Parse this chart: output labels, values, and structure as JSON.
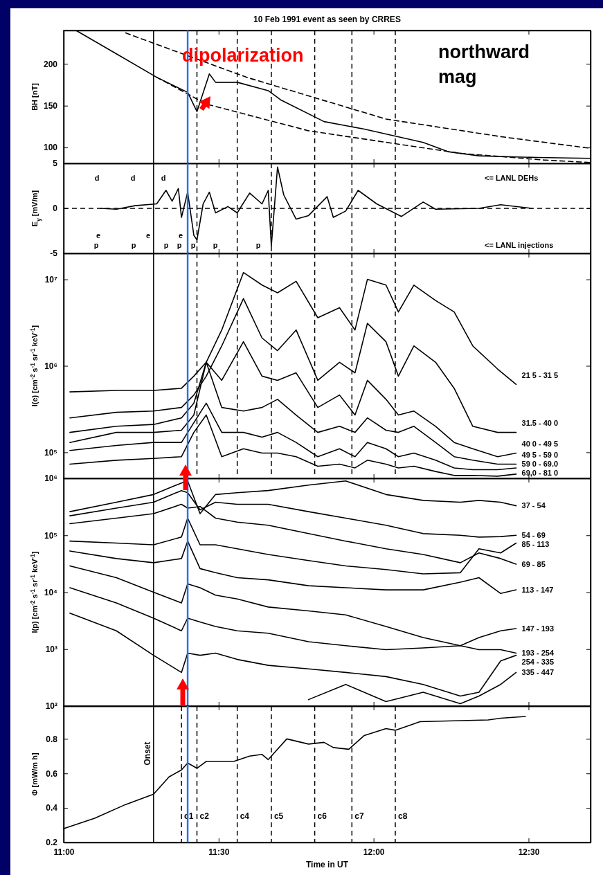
{
  "chart_data": [
    {
      "type": "line",
      "title": "10 Feb 1991 event as seen by CRRES",
      "ylabel": "BH [nT]",
      "xlim": [
        11,
        12.7
      ],
      "xticks": [
        11,
        11.5,
        12,
        12.5
      ],
      "ylim": [
        81,
        240
      ],
      "yticks": [
        100,
        150,
        200
      ],
      "tick_labels": "y",
      "series": [
        {
          "color": "#000000",
          "x": [
            11.04,
            11.17,
            11.3,
            11.4,
            11.43,
            11.47,
            11.49,
            11.56,
            11.66,
            11.7,
            11.84,
            11.97,
            12.16,
            12.24,
            12.34,
            12.53,
            12.7
          ],
          "values": [
            240,
            212,
            184,
            166,
            143,
            188,
            178,
            178,
            168,
            157,
            131,
            122,
            106,
            95,
            90,
            88,
            87
          ]
        },
        {
          "color": "#000000",
          "line_style": "dashed",
          "x": [
            11.2,
            11.59,
            12.04,
            12.41,
            12.7
          ],
          "values": [
            237,
            184,
            134,
            113,
            99
          ]
        },
        {
          "color": "#000000",
          "line_style": "dashed",
          "x": [
            11.3,
            11.46,
            11.79,
            12.28,
            12.55,
            12.7
          ],
          "values": [
            184,
            152,
            120,
            93,
            85,
            82
          ]
        }
      ],
      "ref_lines": [
        {
          "axis": "x",
          "value": 11.29,
          "label": null,
          "line_style": "solid"
        },
        {
          "axis": "x",
          "value": 11.43,
          "label": null,
          "line_style": "dashed"
        },
        {
          "axis": "x",
          "value": 11.56,
          "label": null,
          "line_style": "dashed"
        },
        {
          "axis": "x",
          "value": 11.67,
          "label": null,
          "line_style": "dashed"
        },
        {
          "axis": "x",
          "value": 11.81,
          "label": null,
          "line_style": "dashed"
        },
        {
          "axis": "x",
          "value": 11.93,
          "label": null,
          "line_style": "dashed"
        },
        {
          "axis": "x",
          "value": 12.07,
          "label": null,
          "line_style": "dashed"
        },
        {
          "axis": "x",
          "value": 11.4,
          "label": null,
          "color": "#2f6fe8",
          "line_style": "solid"
        }
      ],
      "annotations": [
        "dipolarization",
        "northward mag"
      ]
    },
    {
      "type": "line",
      "ylabel": "E$_{y}$ [mV/m]",
      "xlim": [
        11,
        12.7
      ],
      "xticks": [
        11,
        11.5,
        12,
        12.5
      ],
      "ylim": [
        -5,
        5
      ],
      "yticks": [
        -5,
        0,
        5
      ],
      "tick_labels": "y",
      "x": [
        11.12,
        11.17,
        11.23,
        11.3,
        11.33,
        11.35,
        11.37,
        11.38,
        11.4,
        11.42,
        11.43,
        11.45,
        11.47,
        11.49,
        11.53,
        11.56,
        11.6,
        11.64,
        11.66,
        11.67,
        11.69,
        11.71,
        11.75,
        11.79,
        11.85,
        11.87,
        11.91,
        11.95,
        12.01,
        12.09,
        12.16,
        12.2,
        12.34,
        12.41,
        12.51
      ],
      "series": [
        {
          "color": "#000000",
          "values": [
            0,
            -0.1,
            0.3,
            0.5,
            2.0,
            0.8,
            2.2,
            -1.0,
            1.8,
            -3.0,
            -3.5,
            0.5,
            1.8,
            -0.5,
            0.2,
            -0.5,
            1.7,
            0.5,
            2.0,
            -4.2,
            4.6,
            1.5,
            -1.2,
            -0.8,
            1.3,
            -1.0,
            -0.3,
            2.0,
            0.5,
            -0.9,
            0.7,
            -0.1,
            0.0,
            0.4,
            0.0
          ]
        }
      ],
      "ref_lines": [
        {
          "axis": "y",
          "value": 0,
          "label": null,
          "line_style": "dashed"
        },
        {
          "axis": "x",
          "value": 11.29,
          "label": null,
          "line_style": "solid"
        },
        {
          "axis": "x",
          "value": 11.43,
          "label": null,
          "line_style": "dashed"
        },
        {
          "axis": "x",
          "value": 11.56,
          "label": null,
          "line_style": "dashed"
        },
        {
          "axis": "x",
          "value": 11.67,
          "label": null,
          "line_style": "dashed"
        },
        {
          "axis": "x",
          "value": 11.81,
          "label": null,
          "line_style": "dashed"
        },
        {
          "axis": "x",
          "value": 11.93,
          "label": null,
          "line_style": "dashed"
        },
        {
          "axis": "x",
          "value": 12.07,
          "label": null,
          "line_style": "dashed"
        },
        {
          "axis": "x",
          "value": 11.4,
          "label": null,
          "color": "#2f6fe8",
          "line_style": "solid"
        }
      ],
      "annotations": [
        "d",
        "d",
        "d",
        "e",
        "e",
        "e",
        "p",
        "p",
        "p",
        "p",
        "p",
        "p",
        "p",
        "<= LANL DEHs",
        "<= LANL injections"
      ]
    },
    {
      "type": "line",
      "ylabel": "I(e) [cm$^{-2}$ s$^{-1}$ sr$^{-1}$ keV$^{-1}$]",
      "xlim": [
        11,
        12.7
      ],
      "xticks": [
        11,
        11.5,
        12,
        12.5
      ],
      "log": true,
      "ylim": [
        50000,
        20000000
      ],
      "yticks": [
        {
          "value": 100000,
          "label": "10⁵"
        },
        {
          "value": 1000000,
          "label": "10⁶"
        },
        {
          "value": 10000000,
          "label": "10⁷"
        }
      ],
      "tick_labels": "y",
      "legend": "right",
      "x": [
        11.02,
        11.17,
        11.29,
        11.38,
        11.42,
        11.46,
        11.51,
        11.58,
        11.64,
        11.69,
        11.75,
        11.82,
        11.89,
        11.94,
        11.98,
        12.04,
        12.08,
        12.13,
        12.2,
        12.26,
        12.32,
        12.4,
        12.46
      ],
      "series": [
        {
          "name": "21 5 - 31 5",
          "color": "#000000",
          "values": [
            500000.0,
            520000.0,
            520000.0,
            550000.0,
            760000.0,
            1100000.0,
            2600000.0,
            12000000.0,
            8600000.0,
            7000000.0,
            9500000.0,
            3600000.0,
            4700000.0,
            2600000.0,
            10000000.0,
            8600000.0,
            4200000.0,
            8600000.0,
            5700000.0,
            4200000.0,
            1700000.0,
            920000.0,
            610000.0
          ]
        },
        {
          "name": "31.5 - 40 0",
          "color": "#000000",
          "values": [
            250000.0,
            290000.0,
            300000.0,
            330000.0,
            460000.0,
            760000.0,
            1700000.0,
            6000000.0,
            2100000.0,
            1500000.0,
            2600000.0,
            680000.0,
            1100000.0,
            830000.0,
            3100000.0,
            1900000.0,
            760000.0,
            1700000.0,
            1100000.0,
            550000.0,
            200000.0,
            170000.0,
            170000.0
          ]
        },
        {
          "name": "40 0 - 49 5",
          "color": "#000000",
          "values": [
            170000.0,
            200000.0,
            210000.0,
            250000.0,
            370000.0,
            1100000.0,
            680000.0,
            1900000.0,
            760000.0,
            680000.0,
            830000.0,
            330000.0,
            460000.0,
            270000.0,
            680000.0,
            410000.0,
            270000.0,
            300000.0,
            200000.0,
            130000.0,
            110000.0,
            89000.0,
            98000.0
          ]
        },
        {
          "name": "49 5 - 59 0",
          "color": "#000000",
          "values": [
            130000.0,
            170000.0,
            170000.0,
            180000.0,
            270000.0,
            1100000.0,
            330000.0,
            300000.0,
            330000.0,
            410000.0,
            270000.0,
            170000.0,
            200000.0,
            170000.0,
            250000.0,
            180000.0,
            170000.0,
            200000.0,
            130000.0,
            89000.0,
            81000.0,
            73000.0,
            73000.0
          ]
        },
        {
          "name": "59 0 - 69.0",
          "color": "#000000",
          "values": [
            105000.0,
            120000.0,
            130000.0,
            130000.0,
            220000.0,
            370000.0,
            170000.0,
            170000.0,
            150000.0,
            170000.0,
            130000.0,
            89000.0,
            110000.0,
            89000.0,
            130000.0,
            110000.0,
            89000.0,
            98000.0,
            81000.0,
            66000.0,
            63000.0,
            63000.0,
            66000.0
          ]
        },
        {
          "name": "69,0 - 81 0",
          "color": "#000000",
          "values": [
            73000.0,
            81000.0,
            85000.0,
            89000.0,
            170000.0,
            270000.0,
            89000.0,
            110000.0,
            98000.0,
            98000.0,
            89000.0,
            69000.0,
            73000.0,
            66000.0,
            81000.0,
            73000.0,
            66000.0,
            69000.0,
            60000.0,
            54000.0,
            54000.0,
            53000.0,
            56000.0
          ]
        }
      ],
      "ref_lines": [
        {
          "axis": "x",
          "value": 11.29,
          "label": null,
          "line_style": "solid"
        },
        {
          "axis": "x",
          "value": 11.43,
          "label": null,
          "line_style": "dashed"
        },
        {
          "axis": "x",
          "value": 11.56,
          "label": null,
          "line_style": "dashed"
        },
        {
          "axis": "x",
          "value": 11.67,
          "label": null,
          "line_style": "dashed"
        },
        {
          "axis": "x",
          "value": 11.81,
          "label": null,
          "line_style": "dashed"
        },
        {
          "axis": "x",
          "value": 11.93,
          "label": null,
          "line_style": "dashed"
        },
        {
          "axis": "x",
          "value": 12.07,
          "label": null,
          "line_style": "dashed"
        },
        {
          "axis": "x",
          "value": 11.4,
          "label": null,
          "color": "#2f6fe8",
          "line_style": "solid"
        }
      ]
    },
    {
      "type": "line",
      "ylabel": "I(p) [cm$^{-2}$ s$^{-1}$ sr$^{-1}$ keV$^{-1}$]",
      "xlim": [
        11,
        12.7
      ],
      "xticks": [
        11,
        11.5,
        12,
        12.5
      ],
      "log": true,
      "ylim": [
        100,
        1000000
      ],
      "yticks": [
        {
          "value": 100,
          "label": "10²"
        },
        {
          "value": 1000,
          "label": "10³"
        },
        {
          "value": 10000,
          "label": "10⁴"
        },
        {
          "value": 100000,
          "label": "10⁵"
        },
        {
          "value": 1000000,
          "label": "10⁶"
        }
      ],
      "tick_labels": "y",
      "legend": "right",
      "x": [
        11.02,
        11.17,
        11.29,
        11.38,
        11.4,
        11.44,
        11.49,
        11.56,
        11.66,
        11.79,
        11.91,
        12.04,
        12.16,
        12.28,
        12.34,
        12.41,
        12.46
      ],
      "series": [
        {
          "name": "37 - 54",
          "color": "#000000",
          "values": [
            260000.0,
            380000.0,
            520000.0,
            830000.0,
            900000.0,
            240000.0,
            520000.0,
            560000.0,
            610000.0,
            760000.0,
            900000.0,
            520000.0,
            410000.0,
            380000.0,
            410000.0,
            380000.0,
            330000.0
          ]
        },
        {
          "name": "54 - 69",
          "color": "#000000",
          "values": [
            220000.0,
            300000.0,
            380000.0,
            610000.0,
            560000.0,
            280000.0,
            380000.0,
            350000.0,
            350000.0,
            260000.0,
            200000.0,
            150000.0,
            107000.0,
            100000.0,
            93000.0,
            95000.0,
            100000.0
          ]
        },
        {
          "name": "69 - 85",
          "color": "#000000",
          "values": [
            160000.0,
            200000.0,
            240000.0,
            350000.0,
            300000.0,
            320000.0,
            200000.0,
            170000.0,
            150000.0,
            107000.0,
            79000.0,
            58000.0,
            46000.0,
            33000.0,
            49000.0,
            39000.0,
            31000.0
          ]
        },
        {
          "name": "85 - 113",
          "color": "#000000",
          "values": [
            79000.0,
            73000.0,
            68000.0,
            93000.0,
            200000.0,
            68000.0,
            68000.0,
            58000.0,
            46000.0,
            36000.0,
            29000.0,
            25000.0,
            21000.0,
            22000.0,
            58000.0,
            49000.0,
            73000.0
          ]
        },
        {
          "name": "113 - 147",
          "color": "#000000",
          "values": [
            53000.0,
            39000.0,
            33000.0,
            39000.0,
            79000.0,
            26000.0,
            22000.0,
            18000.0,
            16500.0,
            13000.0,
            12000.0,
            11000.0,
            11000.0,
            15000.0,
            18000.0,
            9500.0,
            11000.0
          ]
        },
        {
          "name": "147 - 193",
          "color": "#000000",
          "values": [
            29000.0,
            18000.0,
            10000.0,
            6500.0,
            14000.0,
            12000.0,
            8900.0,
            7600.0,
            5500.0,
            4700.0,
            4000.0,
            2500.0,
            1600.0,
            1150.0,
            1600.0,
            2100.0,
            2300.0
          ]
        },
        {
          "name": "193 - 254",
          "color": "#000000",
          "values": [
            12000.0,
            6500.0,
            3500.0,
            2100.0,
            3500.0,
            3000.0,
            2500.0,
            2100.0,
            1900.0,
            1350.0,
            1150.0,
            980,
            1050,
            1150,
            980,
            980,
            850
          ]
        },
        {
          "name": "254 - 335",
          "color": "#000000",
          "values": [
            4300.0,
            2100.0,
            780,
            390,
            850,
            780,
            850,
            660,
            520,
            450,
            390,
            330,
            240,
            150,
            175,
            620,
            780
          ]
        },
        {
          "name": "335 - 447",
          "color": "#000000",
          "values": [
            null,
            null,
            null,
            null,
            null,
            null,
            null,
            null,
            null,
            130,
            240,
            120,
            175,
            110,
            150,
            240,
            390
          ]
        }
      ],
      "ref_lines": [
        {
          "axis": "x",
          "value": 11.29,
          "label": null,
          "line_style": "solid"
        },
        {
          "axis": "x",
          "value": 11.4,
          "label": null,
          "color": "#2f6fe8",
          "line_style": "solid"
        }
      ]
    },
    {
      "type": "line",
      "ylabel": "Φ [mW/m h]",
      "xlabel": "Time in UT",
      "xlim": [
        11,
        12.7
      ],
      "xticks": [
        {
          "value": 11,
          "label": "11:00"
        },
        {
          "value": 11.5,
          "label": "11:30"
        },
        {
          "value": 12,
          "label": "12:00"
        },
        {
          "value": 12.5,
          "label": "12:30"
        }
      ],
      "ylim": [
        0.2,
        0.99
      ],
      "yticks": [
        0.2,
        0.4,
        0.6,
        0.8
      ],
      "x": [
        11.0,
        11.1,
        11.2,
        11.29,
        11.34,
        11.38,
        11.4,
        11.43,
        11.46,
        11.55,
        11.6,
        11.64,
        11.66,
        11.72,
        11.79,
        11.84,
        11.87,
        11.92,
        11.97,
        12.04,
        12.07,
        12.15,
        12.37,
        12.41,
        12.49
      ],
      "series": [
        {
          "color": "#000000",
          "values": [
            0.28,
            0.34,
            0.42,
            0.48,
            0.58,
            0.62,
            0.66,
            0.63,
            0.67,
            0.67,
            0.7,
            0.71,
            0.68,
            0.8,
            0.77,
            0.78,
            0.75,
            0.74,
            0.82,
            0.86,
            0.85,
            0.9,
            0.91,
            0.92,
            0.93
          ]
        }
      ],
      "ref_lines": [
        {
          "axis": "x",
          "value": 11.29,
          "label": "Onset",
          "line_style": "solid"
        },
        {
          "axis": "x",
          "value": 11.38,
          "label": "c1",
          "line_style": "dashed"
        },
        {
          "axis": "x",
          "value": 11.43,
          "label": "c2",
          "line_style": "dashed"
        },
        {
          "axis": "x",
          "value": 11.56,
          "label": "c4",
          "line_style": "dashed"
        },
        {
          "axis": "x",
          "value": 11.67,
          "label": "c5",
          "line_style": "dashed"
        },
        {
          "axis": "x",
          "value": 11.81,
          "label": "c6",
          "line_style": "dashed"
        },
        {
          "axis": "x",
          "value": 11.93,
          "label": "c7",
          "line_style": "dashed"
        },
        {
          "axis": "x",
          "value": 12.07,
          "label": "c8",
          "line_style": "dashed"
        },
        {
          "axis": "x",
          "value": 11.4,
          "label": null,
          "color": "#2f6fe8",
          "line_style": "solid"
        }
      ]
    }
  ]
}
